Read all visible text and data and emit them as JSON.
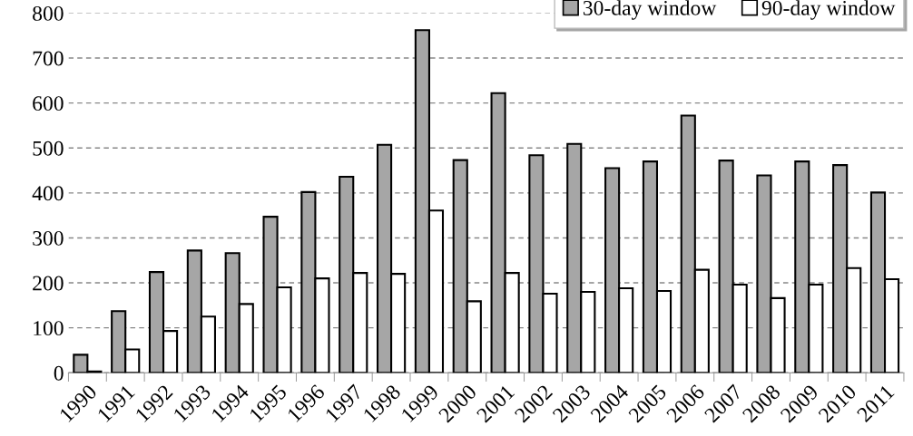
{
  "chart_data": {
    "type": "bar",
    "categories": [
      "1990",
      "1991",
      "1992",
      "1993",
      "1994",
      "1995",
      "1996",
      "1997",
      "1998",
      "1999",
      "2000",
      "2001",
      "2002",
      "2003",
      "2004",
      "2005",
      "2006",
      "2007",
      "2008",
      "2009",
      "2010",
      "2011"
    ],
    "series": [
      {
        "name": "30-day window",
        "color": "#a6a6a6",
        "values": [
          40,
          137,
          224,
          272,
          266,
          347,
          402,
          436,
          507,
          762,
          473,
          622,
          484,
          509,
          455,
          470,
          572,
          472,
          439,
          470,
          462,
          401
        ]
      },
      {
        "name": "90-day window",
        "color": "#ffffff",
        "values": [
          3,
          52,
          93,
          125,
          153,
          190,
          210,
          222,
          220,
          361,
          159,
          222,
          176,
          180,
          188,
          182,
          229,
          196,
          166,
          196,
          233,
          208
        ]
      }
    ],
    "ylim": [
      0,
      800
    ],
    "yticks": [
      0,
      100,
      200,
      300,
      400,
      500,
      600,
      700,
      800
    ],
    "grid": "y",
    "legend": "top right"
  }
}
